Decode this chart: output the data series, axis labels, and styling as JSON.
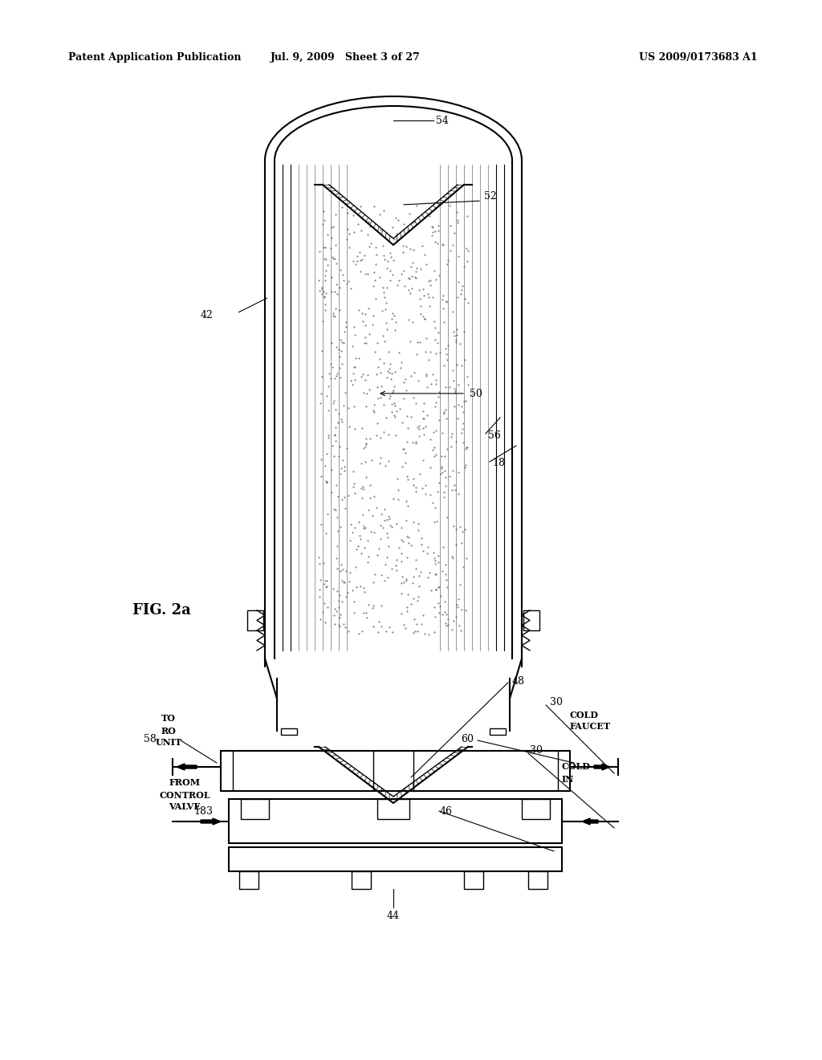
{
  "title_left": "Patent Application Publication",
  "title_mid": "Jul. 9, 2009   Sheet 3 of 27",
  "title_right": "US 2009/0173683 A1",
  "fig_label": "FIG. 2a",
  "bg_color": "#ffffff",
  "line_color": "#000000"
}
